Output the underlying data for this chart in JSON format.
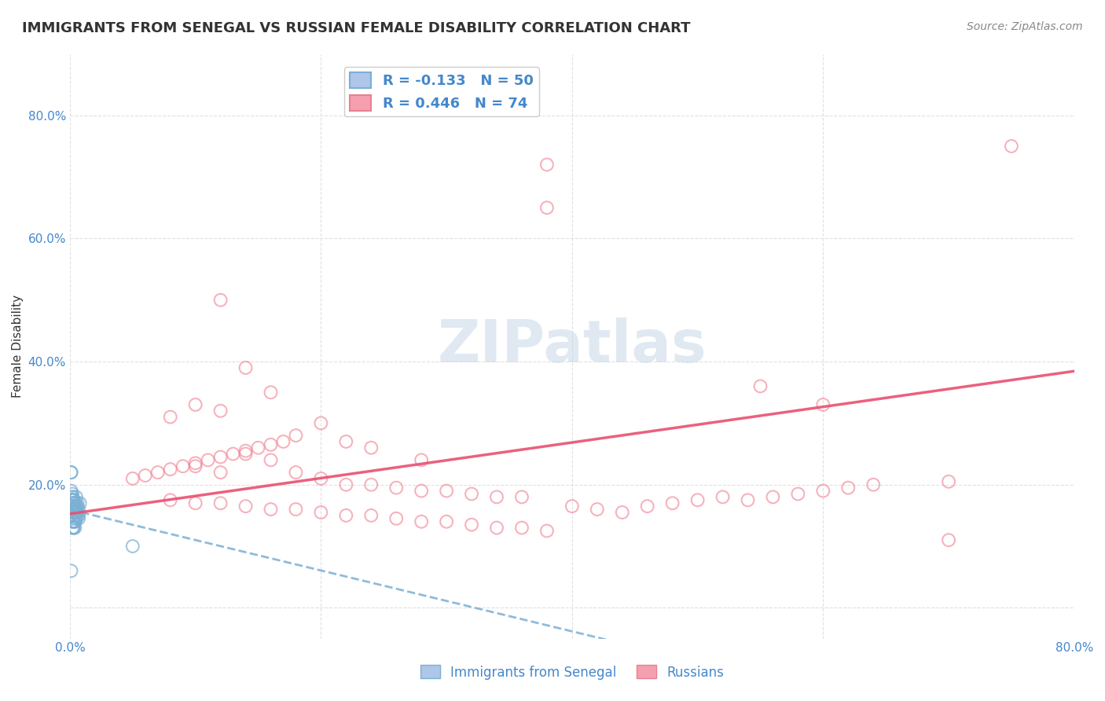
{
  "title": "IMMIGRANTS FROM SENEGAL VS RUSSIAN FEMALE DISABILITY CORRELATION CHART",
  "source": "Source: ZipAtlas.com",
  "xlabel": "",
  "ylabel": "Female Disability",
  "xlim": [
    0.0,
    0.8
  ],
  "ylim": [
    -0.05,
    0.9
  ],
  "x_ticks": [
    0.0,
    0.2,
    0.4,
    0.6,
    0.8
  ],
  "x_tick_labels": [
    "0.0%",
    "",
    "",
    "",
    "80.0%"
  ],
  "y_tick_values": [
    0.0,
    0.2,
    0.4,
    0.6,
    0.8
  ],
  "y_tick_labels": [
    "",
    "20.0%",
    "40.0%",
    "60.0%",
    "80.0%"
  ],
  "watermark": "ZIPatlas",
  "legend_series1_label": "R = -0.133   N = 50",
  "legend_series2_label": "R = 0.446   N = 74",
  "legend_series1_color": "#aec6e8",
  "legend_series2_color": "#f4a0b0",
  "series1_color": "#7bafd4",
  "series2_color": "#f08090",
  "trend1_color": "#7bafd4",
  "trend2_color": "#e85070",
  "background_color": "#ffffff",
  "grid_color": "#dddddd",
  "senegal_x": [
    0.003,
    0.005,
    0.007,
    0.002,
    0.004,
    0.006,
    0.008,
    0.001,
    0.003,
    0.002,
    0.004,
    0.005,
    0.003,
    0.006,
    0.007,
    0.002,
    0.003,
    0.004,
    0.005,
    0.001,
    0.002,
    0.003,
    0.004,
    0.006,
    0.005,
    0.007,
    0.002,
    0.003,
    0.001,
    0.004,
    0.005,
    0.006,
    0.003,
    0.002,
    0.004,
    0.001,
    0.003,
    0.005,
    0.006,
    0.002,
    0.003,
    0.004,
    0.001,
    0.002,
    0.003,
    0.05,
    0.001,
    0.002,
    0.003,
    0.001
  ],
  "senegal_y": [
    0.145,
    0.18,
    0.16,
    0.14,
    0.15,
    0.155,
    0.17,
    0.15,
    0.16,
    0.13,
    0.14,
    0.155,
    0.17,
    0.165,
    0.15,
    0.18,
    0.175,
    0.14,
    0.16,
    0.19,
    0.185,
    0.13,
    0.17,
    0.15,
    0.165,
    0.145,
    0.175,
    0.16,
    0.22,
    0.13,
    0.145,
    0.17,
    0.155,
    0.165,
    0.14,
    0.15,
    0.175,
    0.16,
    0.155,
    0.18,
    0.13,
    0.16,
    0.22,
    0.14,
    0.17,
    0.1,
    0.165,
    0.175,
    0.155,
    0.06
  ],
  "russian_x": [
    0.38,
    0.38,
    0.12,
    0.14,
    0.16,
    0.1,
    0.12,
    0.08,
    0.2,
    0.18,
    0.22,
    0.24,
    0.14,
    0.16,
    0.28,
    0.1,
    0.12,
    0.18,
    0.2,
    0.22,
    0.24,
    0.26,
    0.28,
    0.3,
    0.32,
    0.34,
    0.36,
    0.08,
    0.1,
    0.12,
    0.14,
    0.16,
    0.18,
    0.2,
    0.22,
    0.24,
    0.26,
    0.28,
    0.3,
    0.32,
    0.34,
    0.36,
    0.38,
    0.4,
    0.42,
    0.44,
    0.46,
    0.48,
    0.5,
    0.52,
    0.54,
    0.56,
    0.58,
    0.6,
    0.62,
    0.64,
    0.7,
    0.05,
    0.06,
    0.07,
    0.08,
    0.09,
    0.1,
    0.11,
    0.12,
    0.13,
    0.14,
    0.15,
    0.16,
    0.17,
    0.55,
    0.6,
    0.7,
    0.75
  ],
  "russian_y": [
    0.72,
    0.65,
    0.5,
    0.39,
    0.35,
    0.33,
    0.32,
    0.31,
    0.3,
    0.28,
    0.27,
    0.26,
    0.25,
    0.24,
    0.24,
    0.23,
    0.22,
    0.22,
    0.21,
    0.2,
    0.2,
    0.195,
    0.19,
    0.19,
    0.185,
    0.18,
    0.18,
    0.175,
    0.17,
    0.17,
    0.165,
    0.16,
    0.16,
    0.155,
    0.15,
    0.15,
    0.145,
    0.14,
    0.14,
    0.135,
    0.13,
    0.13,
    0.125,
    0.165,
    0.16,
    0.155,
    0.165,
    0.17,
    0.175,
    0.18,
    0.175,
    0.18,
    0.185,
    0.19,
    0.195,
    0.2,
    0.205,
    0.21,
    0.215,
    0.22,
    0.225,
    0.23,
    0.235,
    0.24,
    0.245,
    0.25,
    0.255,
    0.26,
    0.265,
    0.27,
    0.36,
    0.33,
    0.11,
    0.75
  ]
}
